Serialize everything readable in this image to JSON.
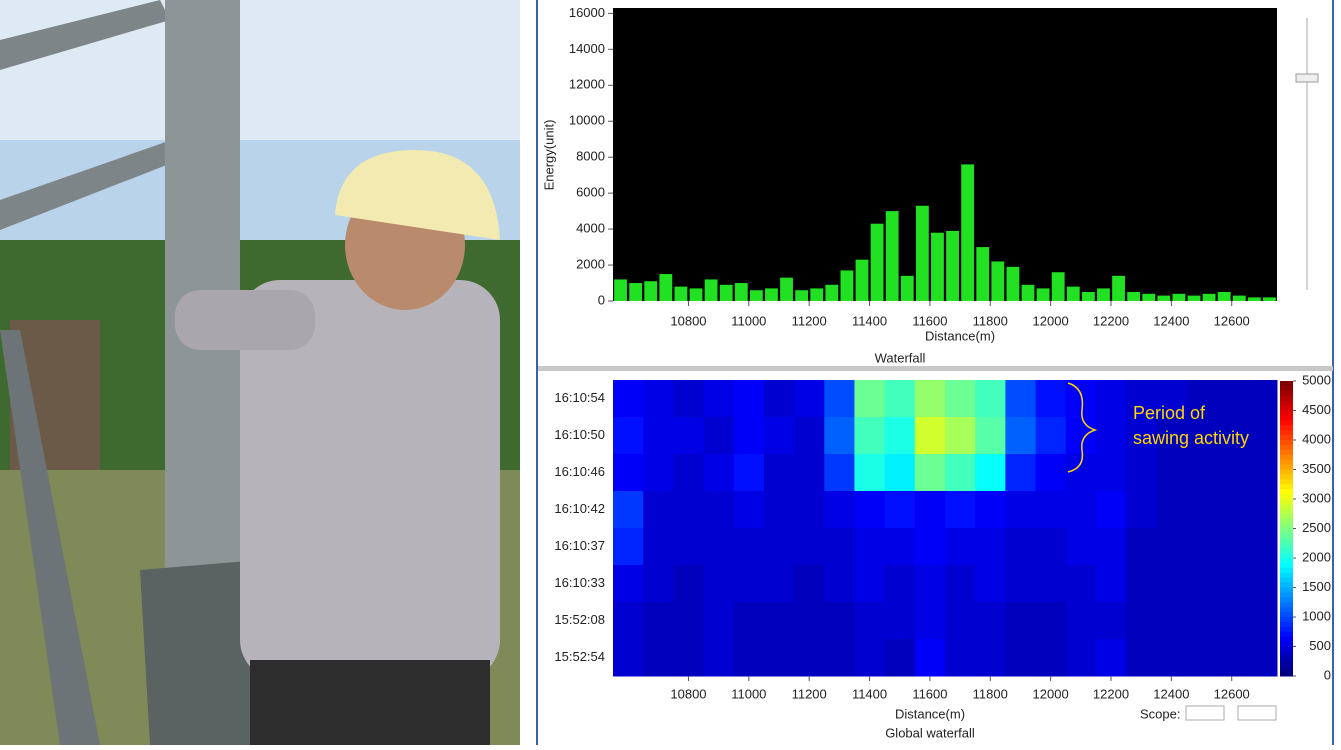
{
  "chart_data": [
    {
      "type": "bar",
      "x_label": "Distance(m)",
      "y_label": "Energy(unit)",
      "color": "#22e022",
      "background": "#000000",
      "x": [
        10575,
        10625,
        10675,
        10725,
        10775,
        10825,
        10875,
        10925,
        10975,
        11025,
        11075,
        11125,
        11175,
        11225,
        11275,
        11325,
        11375,
        11425,
        11475,
        11525,
        11575,
        11625,
        11675,
        11725,
        11775,
        11825,
        11875,
        11925,
        11975,
        12025,
        12075,
        12125,
        12175,
        12225,
        12275,
        12325,
        12375,
        12425,
        12475,
        12525,
        12575,
        12625,
        12675,
        12725
      ],
      "values": [
        1200,
        1000,
        1100,
        1500,
        800,
        700,
        1200,
        900,
        1000,
        600,
        700,
        1300,
        600,
        700,
        900,
        1700,
        2300,
        4300,
        5000,
        1400,
        5300,
        3800,
        3900,
        7600,
        3000,
        2200,
        1900,
        900,
        700,
        1600,
        800,
        500,
        700,
        1400,
        500,
        400,
        300,
        400,
        300,
        400,
        500,
        300,
        200,
        200
      ],
      "xlim": [
        10550,
        12750
      ],
      "xticks": [
        10800,
        11000,
        11200,
        11400,
        11600,
        11800,
        12000,
        12200,
        12400,
        12600
      ],
      "ylim": [
        0,
        16300
      ],
      "yticks": [
        0,
        2000,
        4000,
        6000,
        8000,
        10000,
        12000,
        14000,
        16000
      ]
    },
    {
      "type": "heatmap",
      "title": "Waterfall",
      "x_label": "Distance(m)",
      "caption": "Global waterfall",
      "scope_label": "Scope:",
      "annotation": [
        "Period of",
        "sawing activity"
      ],
      "annotation_color": "#ffd700",
      "colorscale": "jet",
      "x": [
        10600,
        10700,
        10800,
        10900,
        11000,
        11100,
        11200,
        11300,
        11400,
        11500,
        11600,
        11700,
        11800,
        11900,
        12000,
        12100,
        12200,
        12300,
        12400,
        12500,
        12600,
        12700
      ],
      "categories": [
        "16:10:54",
        "16:10:50",
        "16:10:46",
        "16:10:42",
        "16:10:37",
        "16:10:33",
        "15:52:08",
        "15:52:54"
      ],
      "values": [
        [
          600,
          500,
          400,
          500,
          600,
          400,
          500,
          1000,
          2400,
          2200,
          2600,
          2400,
          2200,
          1000,
          700,
          600,
          500,
          400,
          400,
          300,
          300,
          300
        ],
        [
          700,
          500,
          500,
          400,
          600,
          500,
          400,
          1100,
          2200,
          2000,
          2900,
          2700,
          2300,
          1100,
          800,
          600,
          500,
          400,
          300,
          300,
          300,
          300
        ],
        [
          600,
          500,
          400,
          500,
          700,
          400,
          400,
          900,
          2000,
          1800,
          2400,
          2200,
          1900,
          800,
          600,
          500,
          500,
          400,
          300,
          300,
          300,
          300
        ],
        [
          900,
          400,
          400,
          400,
          500,
          400,
          400,
          500,
          600,
          700,
          600,
          700,
          600,
          500,
          500,
          500,
          600,
          400,
          300,
          300,
          300,
          300
        ],
        [
          800,
          400,
          400,
          400,
          400,
          400,
          400,
          400,
          500,
          500,
          600,
          500,
          500,
          400,
          400,
          500,
          500,
          300,
          300,
          300,
          300,
          300
        ],
        [
          500,
          400,
          300,
          400,
          400,
          400,
          300,
          400,
          500,
          400,
          500,
          400,
          500,
          400,
          400,
          400,
          500,
          300,
          300,
          300,
          300,
          300
        ],
        [
          400,
          300,
          300,
          400,
          300,
          300,
          300,
          300,
          400,
          400,
          500,
          400,
          400,
          300,
          300,
          400,
          400,
          300,
          300,
          300,
          300,
          300
        ],
        [
          400,
          300,
          300,
          400,
          300,
          300,
          300,
          300,
          400,
          300,
          600,
          400,
          400,
          300,
          300,
          400,
          500,
          300,
          300,
          300,
          300,
          300
        ]
      ],
      "xlim": [
        10550,
        12750
      ],
      "xticks": [
        10800,
        11000,
        11200,
        11400,
        11600,
        11800,
        12000,
        12200,
        12400,
        12600
      ],
      "clim": [
        0,
        5000
      ],
      "cticks": [
        0,
        500,
        1000,
        1500,
        2000,
        2500,
        3000,
        3500,
        4000,
        4500,
        5000
      ]
    }
  ]
}
